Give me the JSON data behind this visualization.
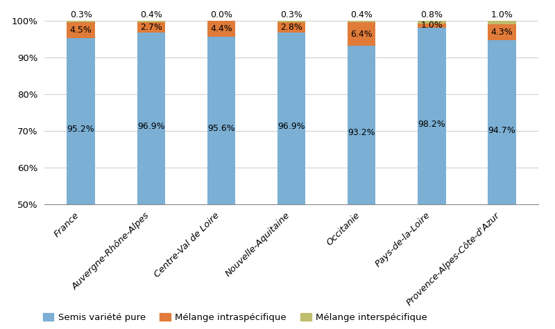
{
  "categories": [
    "France",
    "Auvergne-Rhône-Alpes",
    "Centre-Val de Loire",
    "Nouvelle-Aquitaine",
    "Occitanie",
    "Pays-de-la-Loire",
    "Provence-Alpes-Côte-d'Azur"
  ],
  "semis_pure": [
    95.2,
    96.9,
    95.6,
    96.9,
    93.2,
    98.2,
    94.7
  ],
  "melange_intra": [
    4.5,
    2.7,
    4.4,
    2.8,
    6.4,
    1.0,
    4.3
  ],
  "melange_inter": [
    0.3,
    0.4,
    0.0,
    0.3,
    0.4,
    0.8,
    1.0
  ],
  "semis_pure_labels": [
    "95.2%",
    "96.9%",
    "95.6%",
    "96.9%",
    "93.2%",
    "98.2%",
    "94.7%"
  ],
  "melange_intra_labels": [
    "4.5%",
    "2.7%",
    "4.4%",
    "2.8%",
    "6.4%",
    "1.0%",
    "4.3%"
  ],
  "melange_inter_labels": [
    "0.3%",
    "0.4%",
    "0.0%",
    "0.3%",
    "0.4%",
    "0.8%",
    "1.0%"
  ],
  "color_semis_pure": "#7BAFD4",
  "color_melange_intra": "#E07B39",
  "color_melange_inter": "#BFBD6E",
  "ylim_min": 50,
  "ylim_max": 103,
  "yticks": [
    50,
    60,
    70,
    80,
    90,
    100
  ],
  "ytick_labels": [
    "50%",
    "60%",
    "70%",
    "80%",
    "90%",
    "100%"
  ],
  "legend_semis": "Semis variété pure",
  "legend_intra": "Mélange intraspécifique",
  "legend_inter": "Mélange interspécifique",
  "bar_width": 0.4,
  "label_fontsize": 9,
  "tick_fontsize": 9.5,
  "legend_fontsize": 9.5
}
